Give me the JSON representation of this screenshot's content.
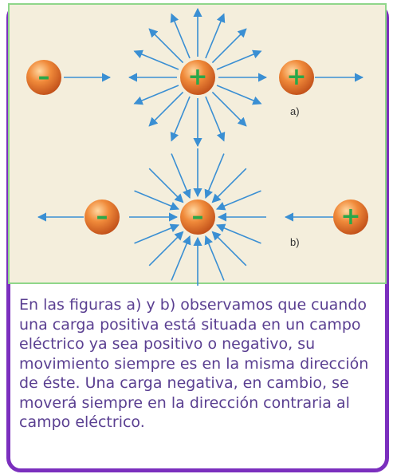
{
  "figure": {
    "label_a": "a)",
    "label_b": "b)",
    "plus_sign": "+",
    "minus_sign": "–",
    "arrow_color": "#3a8fd3",
    "charge_color": "#e8722b",
    "plus_color": "#2aa84a"
  },
  "caption": {
    "text": "En las figuras a) y b) observamos que cuando una carga positiva está situada en un campo eléctrico ya sea positivo o negativo, su movimiento siempre es en la misma dirección de éste. Una carga negativa, en cambio, se moverá siempre en la dirección contraria al campo eléctrico."
  }
}
